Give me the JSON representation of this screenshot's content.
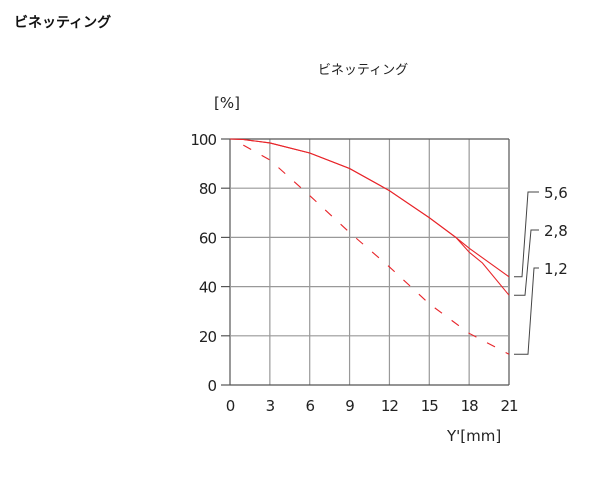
{
  "page": {
    "title": "ビネッティング"
  },
  "chart_data": {
    "type": "line",
    "title": "ビネッティング",
    "xlabel": "Y'[mm]",
    "ylabel": "[%]",
    "xlim": [
      0,
      21
    ],
    "ylim": [
      0,
      100
    ],
    "xticks": [
      0,
      3,
      6,
      9,
      12,
      15,
      18,
      21
    ],
    "yticks": [
      0,
      20,
      40,
      60,
      80,
      100
    ],
    "grid": true,
    "line_color": "#e8252a",
    "series": [
      {
        "name": "5,6",
        "style": "solid",
        "x": [
          0,
          1,
          3,
          6,
          9,
          12,
          15,
          17,
          18,
          21
        ],
        "y": [
          100,
          99.8,
          98.4,
          94.3,
          88,
          79,
          68,
          60,
          55.6,
          44
        ]
      },
      {
        "name": "2,8",
        "style": "solid",
        "x": [
          0,
          1,
          3,
          6,
          9,
          12,
          15,
          17,
          18,
          19,
          21
        ],
        "y": [
          100,
          99.8,
          98.4,
          94.3,
          88,
          79,
          68,
          60,
          54,
          49.6,
          36.5
        ]
      },
      {
        "name": "1,2",
        "style": "dashed",
        "x": [
          1,
          3,
          6,
          9,
          12,
          15,
          18,
          21
        ],
        "y": [
          97.5,
          91.5,
          77,
          62,
          48,
          33,
          21,
          12.5
        ]
      }
    ]
  }
}
